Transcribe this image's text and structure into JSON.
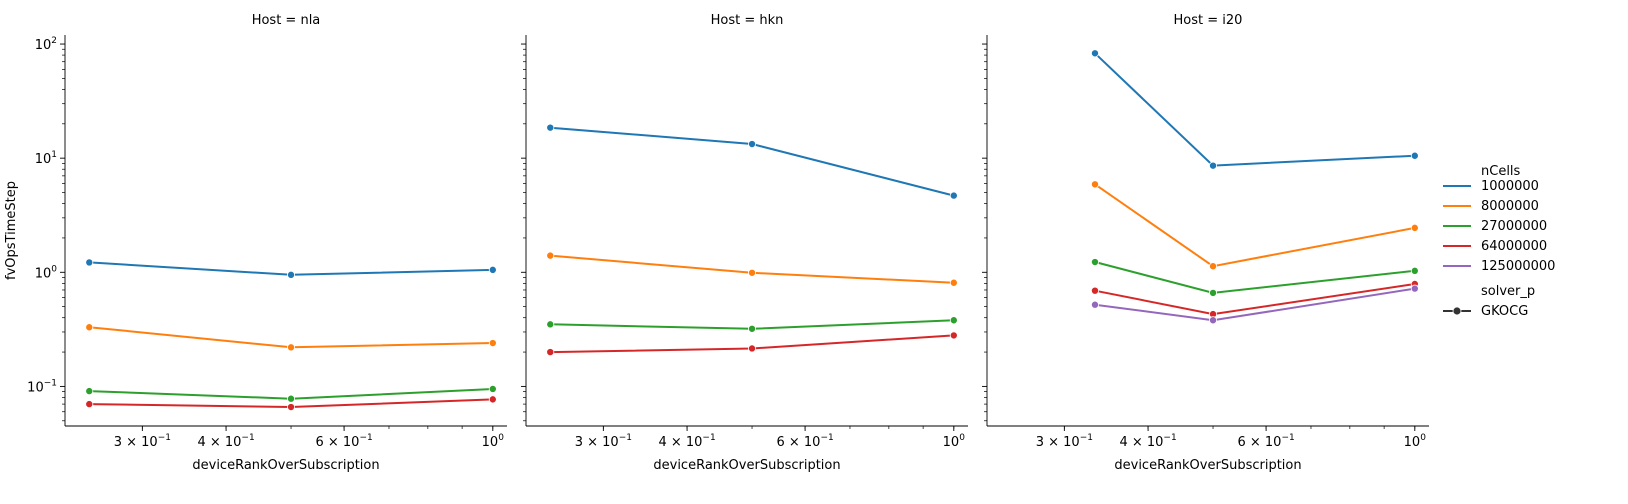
{
  "chart_data": {
    "type": "line",
    "ylabel": "fvOpsTimeStep",
    "xlabel": "deviceRankOverSubscription",
    "xscale": "log",
    "yscale": "log",
    "xlim": [
      0.23,
      1.05
    ],
    "ylim": [
      0.045,
      120
    ],
    "x_ticks": [
      {
        "value": 0.3,
        "base": "3 × 10",
        "exp": "−1"
      },
      {
        "value": 0.4,
        "base": "4 × 10",
        "exp": "−1"
      },
      {
        "value": 0.6,
        "base": "6 × 10",
        "exp": "−1"
      },
      {
        "value": 1.0,
        "base": "10",
        "exp": "0"
      }
    ],
    "y_ticks": [
      {
        "value": 0.1,
        "base": "10",
        "exp": "−1"
      },
      {
        "value": 1,
        "base": "10",
        "exp": "0"
      },
      {
        "value": 10,
        "base": "10",
        "exp": "1"
      },
      {
        "value": 100,
        "base": "10",
        "exp": "2"
      }
    ],
    "legend": {
      "placement": "right",
      "hue_title": "nCells",
      "style_title": "solver_p",
      "style_entries": [
        "GKOCG"
      ],
      "entries": [
        {
          "label": "1000000",
          "color": "#1f77b4"
        },
        {
          "label": "8000000",
          "color": "#ff7f0e"
        },
        {
          "label": "27000000",
          "color": "#2ca02c"
        },
        {
          "label": "64000000",
          "color": "#d62728"
        },
        {
          "label": "125000000",
          "color": "#9467bd"
        }
      ]
    },
    "panels": [
      {
        "title": "Host = nla",
        "series": [
          {
            "name": "1000000",
            "x": [
              0.25,
              0.5,
              1.0
            ],
            "y": [
              1.22,
              0.95,
              1.05
            ]
          },
          {
            "name": "8000000",
            "x": [
              0.25,
              0.5,
              1.0
            ],
            "y": [
              0.33,
              0.22,
              0.24
            ]
          },
          {
            "name": "27000000",
            "x": [
              0.25,
              0.5,
              1.0
            ],
            "y": [
              0.091,
              0.078,
              0.095
            ]
          },
          {
            "name": "64000000",
            "x": [
              0.25,
              0.5,
              1.0
            ],
            "y": [
              0.07,
              0.066,
              0.077
            ]
          }
        ]
      },
      {
        "title": "Host = hkn",
        "series": [
          {
            "name": "1000000",
            "x": [
              0.25,
              0.5,
              1.0
            ],
            "y": [
              18.5,
              13.3,
              4.7
            ]
          },
          {
            "name": "8000000",
            "x": [
              0.25,
              0.5,
              1.0
            ],
            "y": [
              1.4,
              0.99,
              0.81
            ]
          },
          {
            "name": "27000000",
            "x": [
              0.25,
              0.5,
              1.0
            ],
            "y": [
              0.35,
              0.32,
              0.38
            ]
          },
          {
            "name": "64000000",
            "x": [
              0.25,
              0.5,
              1.0
            ],
            "y": [
              0.2,
              0.215,
              0.28
            ]
          }
        ]
      },
      {
        "title": "Host = i20",
        "series": [
          {
            "name": "1000000",
            "x": [
              0.3333,
              0.5,
              1.0
            ],
            "y": [
              83,
              8.6,
              10.5
            ]
          },
          {
            "name": "8000000",
            "x": [
              0.3333,
              0.5,
              1.0
            ],
            "y": [
              5.9,
              1.13,
              2.45
            ]
          },
          {
            "name": "27000000",
            "x": [
              0.3333,
              0.5,
              1.0
            ],
            "y": [
              1.23,
              0.66,
              1.03
            ]
          },
          {
            "name": "64000000",
            "x": [
              0.3333,
              0.5,
              1.0
            ],
            "y": [
              0.69,
              0.43,
              0.79
            ]
          },
          {
            "name": "125000000",
            "x": [
              0.3333,
              0.5,
              1.0
            ],
            "y": [
              0.52,
              0.38,
              0.72
            ]
          }
        ]
      }
    ]
  }
}
